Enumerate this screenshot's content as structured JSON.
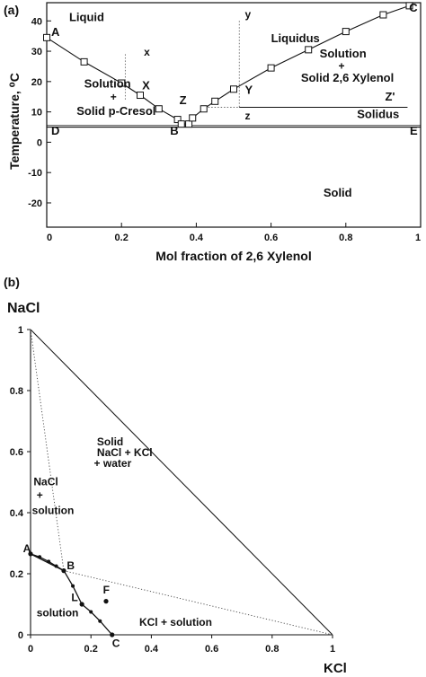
{
  "chart_data": [
    {
      "panel_label": "(a)",
      "type": "line",
      "xlabel": "Mol fraction of 2,6 Xylenol",
      "ylabel": "Temperature, ⁰C",
      "xlim": [
        0,
        1
      ],
      "ylim": [
        -28,
        46
      ],
      "xticks": [
        0,
        0.2,
        0.4,
        0.6,
        0.8,
        1
      ],
      "xticklabels": [
        "0",
        "0.2",
        "0.4",
        "0.6",
        "0.8",
        "1"
      ],
      "yticks": [
        -20,
        -10,
        0,
        10,
        20,
        30,
        40
      ],
      "yticklabels": [
        "-20",
        "-10",
        "0",
        "10",
        "20",
        "30",
        "40"
      ],
      "grid": false,
      "series": [
        {
          "markers": "open-square",
          "x": [
            0.0,
            0.1,
            0.2,
            0.25,
            0.3,
            0.35,
            0.36,
            0.38,
            0.39,
            0.42,
            0.45,
            0.5,
            0.6,
            0.7,
            0.8,
            0.9,
            0.97
          ],
          "y": [
            34.5,
            26.5,
            19.5,
            15.5,
            11.0,
            7.5,
            6.0,
            6.0,
            8.0,
            11.0,
            13.5,
            17.5,
            24.5,
            30.5,
            36.5,
            42.0,
            45.0
          ]
        }
      ],
      "solidus_y": 5.0,
      "annotations": [
        {
          "text": "A"
        },
        {
          "text": "B"
        },
        {
          "text": "C"
        },
        {
          "text": "D"
        },
        {
          "text": "E"
        },
        {
          "text": "Liquid"
        },
        {
          "text": "Liquidus"
        },
        {
          "text": "Solidus"
        },
        {
          "text": "Solid"
        },
        {
          "text": "Solution"
        },
        {
          "text": "+"
        },
        {
          "text": "Solid p-Cresol"
        },
        {
          "text": "Solution"
        },
        {
          "text": "+"
        },
        {
          "text": "Solid 2,6 Xylenol"
        },
        {
          "text": "x"
        },
        {
          "text": "X"
        },
        {
          "text": "y"
        },
        {
          "text": "Y"
        },
        {
          "text": "Z"
        },
        {
          "text": "Z'"
        },
        {
          "text": "z"
        }
      ]
    },
    {
      "panel_label": "(b)",
      "type": "scatter",
      "xlabel": "KCl",
      "ylabel": "NaCl",
      "xlim": [
        0,
        1
      ],
      "ylim": [
        0,
        1
      ],
      "xticks": [
        0,
        0.2,
        0.4,
        0.6,
        0.8,
        1
      ],
      "xticklabels": [
        "0",
        "0.2",
        "0.4",
        "0.6",
        "0.8",
        "1"
      ],
      "yticks": [
        0,
        0.2,
        0.4,
        0.6,
        0.8,
        1
      ],
      "yticklabels": [
        "0",
        "0.2",
        "0.4",
        "0.6",
        "0.8",
        "1"
      ],
      "grid": false,
      "points": [
        {
          "label": "A",
          "x": 0.0,
          "y": 0.265
        },
        {
          "label": "B",
          "x": 0.11,
          "y": 0.21
        },
        {
          "label": "C",
          "x": 0.27,
          "y": 0.0
        },
        {
          "label": "F",
          "x": 0.25,
          "y": 0.11
        },
        {
          "label": "L",
          "x": 0.17,
          "y": 0.1
        }
      ],
      "curve_AB": {
        "x": [
          0.0,
          0.03,
          0.06,
          0.085,
          0.11
        ],
        "y": [
          0.265,
          0.255,
          0.24,
          0.225,
          0.21
        ]
      },
      "curve_BC": {
        "x": [
          0.11,
          0.14,
          0.17,
          0.2,
          0.23,
          0.27
        ],
        "y": [
          0.21,
          0.16,
          0.1,
          0.075,
          0.045,
          0.0
        ]
      },
      "annotations": [
        {
          "text": "Solid"
        },
        {
          "text": "NaCl + KCl"
        },
        {
          "text": "+ water"
        },
        {
          "text": "NaCl"
        },
        {
          "text": "+"
        },
        {
          "text": "solution"
        },
        {
          "text": "solution"
        },
        {
          "text": "KCl + solution"
        },
        {
          "text": "A"
        },
        {
          "text": "B"
        },
        {
          "text": "C"
        },
        {
          "text": "F"
        },
        {
          "text": "L"
        }
      ]
    }
  ]
}
